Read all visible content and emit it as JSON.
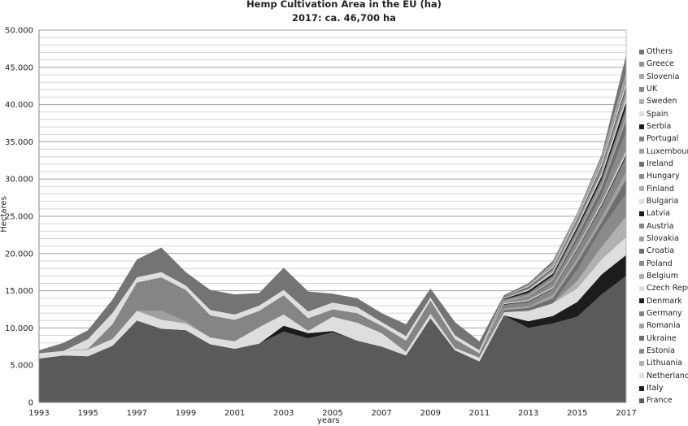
{
  "chart_data": {
    "type": "area",
    "stacked": true,
    "title": "Hemp Cultivation Area in the EU (ha)",
    "subtitle": "2017: ca. 46,700 ha",
    "xlabel": "years",
    "ylabel": "Hectares",
    "ylim": [
      0,
      50000
    ],
    "yticks": [
      "0",
      "5.000",
      "10.000",
      "15.000",
      "20.000",
      "25.000",
      "30.000",
      "35.000",
      "40.000",
      "45.000",
      "50.000"
    ],
    "ytick_values": [
      0,
      5000,
      10000,
      15000,
      20000,
      25000,
      30000,
      35000,
      40000,
      45000,
      50000
    ],
    "xticks": [
      "1993",
      "1995",
      "1997",
      "1999",
      "2001",
      "2003",
      "2005",
      "2007",
      "2009",
      "2011",
      "2013",
      "2015",
      "2017"
    ],
    "grid": true,
    "legend_position": "right",
    "x": [
      1993,
      1994,
      1995,
      1996,
      1997,
      1998,
      1999,
      2000,
      2001,
      2002,
      2003,
      2004,
      2005,
      2006,
      2007,
      2008,
      2009,
      2010,
      2011,
      2012,
      2013,
      2014,
      2015,
      2016,
      2017
    ],
    "series": [
      {
        "name": "France",
        "color": "#5a5a5a",
        "values": [
          5900,
          6300,
          6200,
          7600,
          11000,
          9900,
          9700,
          7800,
          7200,
          7900,
          9500,
          8600,
          9400,
          8300,
          7500,
          6300,
          11300,
          7000,
          5500,
          11700,
          10000,
          10600,
          11500,
          14500,
          17000
        ]
      },
      {
        "name": "Italy",
        "color": "#1c1c1c",
        "values": [
          0,
          0,
          0,
          0,
          0,
          0,
          0,
          0,
          0,
          0,
          800,
          700,
          200,
          0,
          0,
          0,
          0,
          0,
          0,
          0,
          900,
          1000,
          2000,
          2700,
          2800
        ]
      },
      {
        "name": "Netherlands",
        "color": "#dedede",
        "values": [
          700,
          600,
          900,
          900,
          1300,
          1200,
          900,
          900,
          1000,
          2200,
          1500,
          300,
          1900,
          2400,
          1800,
          500,
          600,
          300,
          500,
          400,
          1400,
          1700,
          1800,
          2000,
          2400
        ]
      },
      {
        "name": "Lithuania",
        "color": "#b0b0b0",
        "values": [
          0,
          0,
          0,
          0,
          0,
          0,
          0,
          0,
          0,
          0,
          0,
          0,
          0,
          0,
          0,
          0,
          0,
          0,
          0,
          0,
          0,
          0,
          1000,
          1700,
          2800
        ]
      },
      {
        "name": "Estonia",
        "color": "#8a8a8a",
        "values": [
          0,
          0,
          0,
          0,
          0,
          0,
          0,
          0,
          0,
          0,
          0,
          0,
          0,
          0,
          0,
          0,
          0,
          0,
          0,
          0,
          0,
          0,
          1500,
          2500,
          3000
        ]
      },
      {
        "name": "Ukraine",
        "color": "#6e6e6e",
        "values": [
          0,
          0,
          0,
          0,
          0,
          0,
          0,
          0,
          0,
          0,
          0,
          0,
          0,
          0,
          0,
          0,
          0,
          0,
          0,
          300,
          400,
          700,
          1000,
          800,
          2000
        ]
      },
      {
        "name": "Romania",
        "color": "#a0a0a0",
        "values": [
          0,
          0,
          0,
          0,
          0,
          1200,
          300,
          0,
          0,
          0,
          0,
          0,
          0,
          0,
          0,
          0,
          0,
          0,
          0,
          200,
          200,
          400,
          500,
          650,
          1000
        ]
      },
      {
        "name": "Germany",
        "color": "#858585",
        "values": [
          0,
          0,
          100,
          2000,
          3800,
          4500,
          4200,
          3000,
          2900,
          2200,
          2600,
          1700,
          1000,
          1300,
          1000,
          1500,
          1800,
          1200,
          600,
          500,
          600,
          800,
          1200,
          1500,
          2000
        ]
      },
      {
        "name": "Denmark",
        "color": "#1c1c1c",
        "values": [
          0,
          0,
          0,
          0,
          0,
          0,
          0,
          0,
          0,
          0,
          0,
          0,
          0,
          0,
          0,
          0,
          0,
          0,
          0,
          100,
          100,
          100,
          150,
          200,
          300
        ]
      },
      {
        "name": "Czech Republic",
        "color": "#dedede",
        "values": [
          0,
          0,
          0,
          0,
          0,
          0,
          0,
          0,
          0,
          0,
          0,
          0,
          0,
          0,
          0,
          0,
          0,
          0,
          0,
          100,
          100,
          100,
          150,
          200,
          300
        ]
      },
      {
        "name": "Belgium",
        "color": "#b0b0b0",
        "values": [
          0,
          0,
          0,
          0,
          0,
          0,
          0,
          0,
          0,
          0,
          0,
          0,
          0,
          0,
          0,
          0,
          0,
          0,
          0,
          0,
          100,
          100,
          150,
          200,
          300
        ]
      },
      {
        "name": "Poland",
        "color": "#8a8a8a",
        "values": [
          0,
          0,
          0,
          0,
          0,
          0,
          0,
          0,
          0,
          0,
          0,
          0,
          0,
          0,
          0,
          0,
          0,
          0,
          0,
          200,
          300,
          500,
          700,
          900,
          2500
        ]
      },
      {
        "name": "Croatia",
        "color": "#6e6e6e",
        "values": [
          0,
          0,
          0,
          0,
          0,
          0,
          0,
          0,
          0,
          0,
          0,
          0,
          0,
          0,
          0,
          0,
          0,
          0,
          0,
          0,
          100,
          300,
          700,
          1000,
          1500
        ]
      },
      {
        "name": "Slovakia",
        "color": "#a0a0a0",
        "values": [
          0,
          0,
          0,
          0,
          0,
          0,
          0,
          0,
          0,
          0,
          0,
          0,
          0,
          0,
          0,
          0,
          0,
          0,
          0,
          100,
          200,
          300,
          350,
          450,
          700
        ]
      },
      {
        "name": "Austria",
        "color": "#858585",
        "values": [
          0,
          0,
          0,
          0,
          0,
          0,
          0,
          0,
          0,
          0,
          0,
          0,
          0,
          0,
          0,
          0,
          0,
          0,
          0,
          200,
          300,
          400,
          500,
          650,
          1000
        ]
      },
      {
        "name": "Latvia",
        "color": "#1c1c1c",
        "values": [
          0,
          0,
          0,
          0,
          0,
          0,
          0,
          0,
          0,
          0,
          0,
          0,
          0,
          0,
          0,
          0,
          0,
          0,
          0,
          100,
          300,
          300,
          400,
          500,
          800
        ]
      },
      {
        "name": "Bulgaria",
        "color": "#dedede",
        "values": [
          0,
          0,
          0,
          0,
          0,
          0,
          0,
          0,
          0,
          0,
          0,
          0,
          0,
          0,
          0,
          0,
          0,
          0,
          0,
          0,
          100,
          150,
          200,
          250,
          400
        ]
      },
      {
        "name": "Finland",
        "color": "#b0b0b0",
        "values": [
          0,
          0,
          0,
          0,
          0,
          0,
          0,
          0,
          0,
          0,
          0,
          0,
          0,
          0,
          0,
          0,
          0,
          0,
          0,
          100,
          100,
          200,
          250,
          300,
          500
        ]
      },
      {
        "name": "Hungary",
        "color": "#8a8a8a",
        "values": [
          0,
          0,
          0,
          0,
          0,
          0,
          0,
          0,
          0,
          0,
          0,
          0,
          0,
          0,
          0,
          0,
          0,
          0,
          0,
          100,
          100,
          100,
          150,
          200,
          300
        ]
      },
      {
        "name": "Ireland",
        "color": "#6e6e6e",
        "values": [
          0,
          0,
          0,
          0,
          0,
          0,
          0,
          0,
          0,
          0,
          0,
          0,
          0,
          0,
          0,
          0,
          0,
          0,
          0,
          100,
          100,
          100,
          150,
          200,
          300
        ]
      },
      {
        "name": "Luxembourg",
        "color": "#a0a0a0",
        "values": [
          0,
          0,
          0,
          0,
          0,
          0,
          0,
          0,
          0,
          0,
          0,
          0,
          0,
          0,
          0,
          0,
          0,
          0,
          0,
          0,
          0,
          30,
          50,
          50,
          100
        ]
      },
      {
        "name": "Portugal",
        "color": "#858585",
        "values": [
          0,
          0,
          0,
          0,
          0,
          0,
          0,
          0,
          0,
          0,
          0,
          0,
          0,
          0,
          0,
          0,
          0,
          0,
          0,
          0,
          0,
          70,
          100,
          150,
          200
        ]
      },
      {
        "name": "Serbia",
        "color": "#1c1c1c",
        "values": [
          0,
          0,
          0,
          0,
          0,
          0,
          0,
          0,
          0,
          0,
          0,
          0,
          0,
          0,
          0,
          0,
          0,
          0,
          0,
          0,
          100,
          100,
          150,
          200,
          300
        ]
      },
      {
        "name": "Spain",
        "color": "#dedede",
        "values": [
          0,
          0,
          1300,
          1500,
          700,
          700,
          600,
          700,
          700,
          700,
          700,
          900,
          900,
          800,
          500,
          600,
          400,
          500,
          400,
          0,
          100,
          150,
          200,
          250,
          400
        ]
      },
      {
        "name": "Sweden",
        "color": "#b0b0b0",
        "values": [
          0,
          0,
          0,
          0,
          0,
          0,
          0,
          0,
          0,
          0,
          0,
          0,
          0,
          0,
          0,
          0,
          0,
          0,
          0,
          0,
          100,
          100,
          100,
          150,
          200
        ]
      },
      {
        "name": "UK",
        "color": "#8a8a8a",
        "values": [
          0,
          0,
          0,
          0,
          0,
          0,
          0,
          0,
          0,
          0,
          0,
          0,
          0,
          0,
          0,
          0,
          0,
          0,
          0,
          0,
          100,
          200,
          200,
          300,
          500
        ]
      },
      {
        "name": "Slovenia",
        "color": "#a8a8a8",
        "values": [
          0,
          0,
          0,
          0,
          0,
          0,
          0,
          0,
          0,
          0,
          0,
          0,
          0,
          0,
          0,
          0,
          0,
          0,
          0,
          0,
          0,
          100,
          200,
          300,
          500
        ]
      },
      {
        "name": "Greece",
        "color": "#909090",
        "values": [
          0,
          0,
          0,
          0,
          0,
          0,
          0,
          0,
          0,
          0,
          0,
          0,
          0,
          0,
          0,
          0,
          0,
          0,
          0,
          0,
          0,
          100,
          100,
          200,
          300
        ]
      },
      {
        "name": "Others",
        "color": "#747474",
        "values": [
          400,
          1100,
          1200,
          1800,
          2400,
          3300,
          1800,
          2700,
          2700,
          1700,
          3000,
          2700,
          1200,
          1200,
          1200,
          1600,
          1200,
          1800,
          1200,
          200,
          200,
          300,
          50,
          300,
          2300
        ]
      }
    ],
    "legend_labels": [
      "Others",
      "Greece",
      "Slovenia",
      "UK",
      "Sweden",
      "Spain",
      "Serbia",
      "Portugal",
      "Luxembourg",
      "Ireland",
      "Hungary",
      "Finland",
      "Bulgaria",
      "Latvia",
      "Austria",
      "Slovakia",
      "Croatia",
      "Poland",
      "Belgium",
      "Czech Repub",
      "Denmark",
      "Germany",
      "Romania",
      "Ukraine",
      "Estonia",
      "Lithuania",
      "Netherlands",
      "Italy",
      "France"
    ]
  }
}
